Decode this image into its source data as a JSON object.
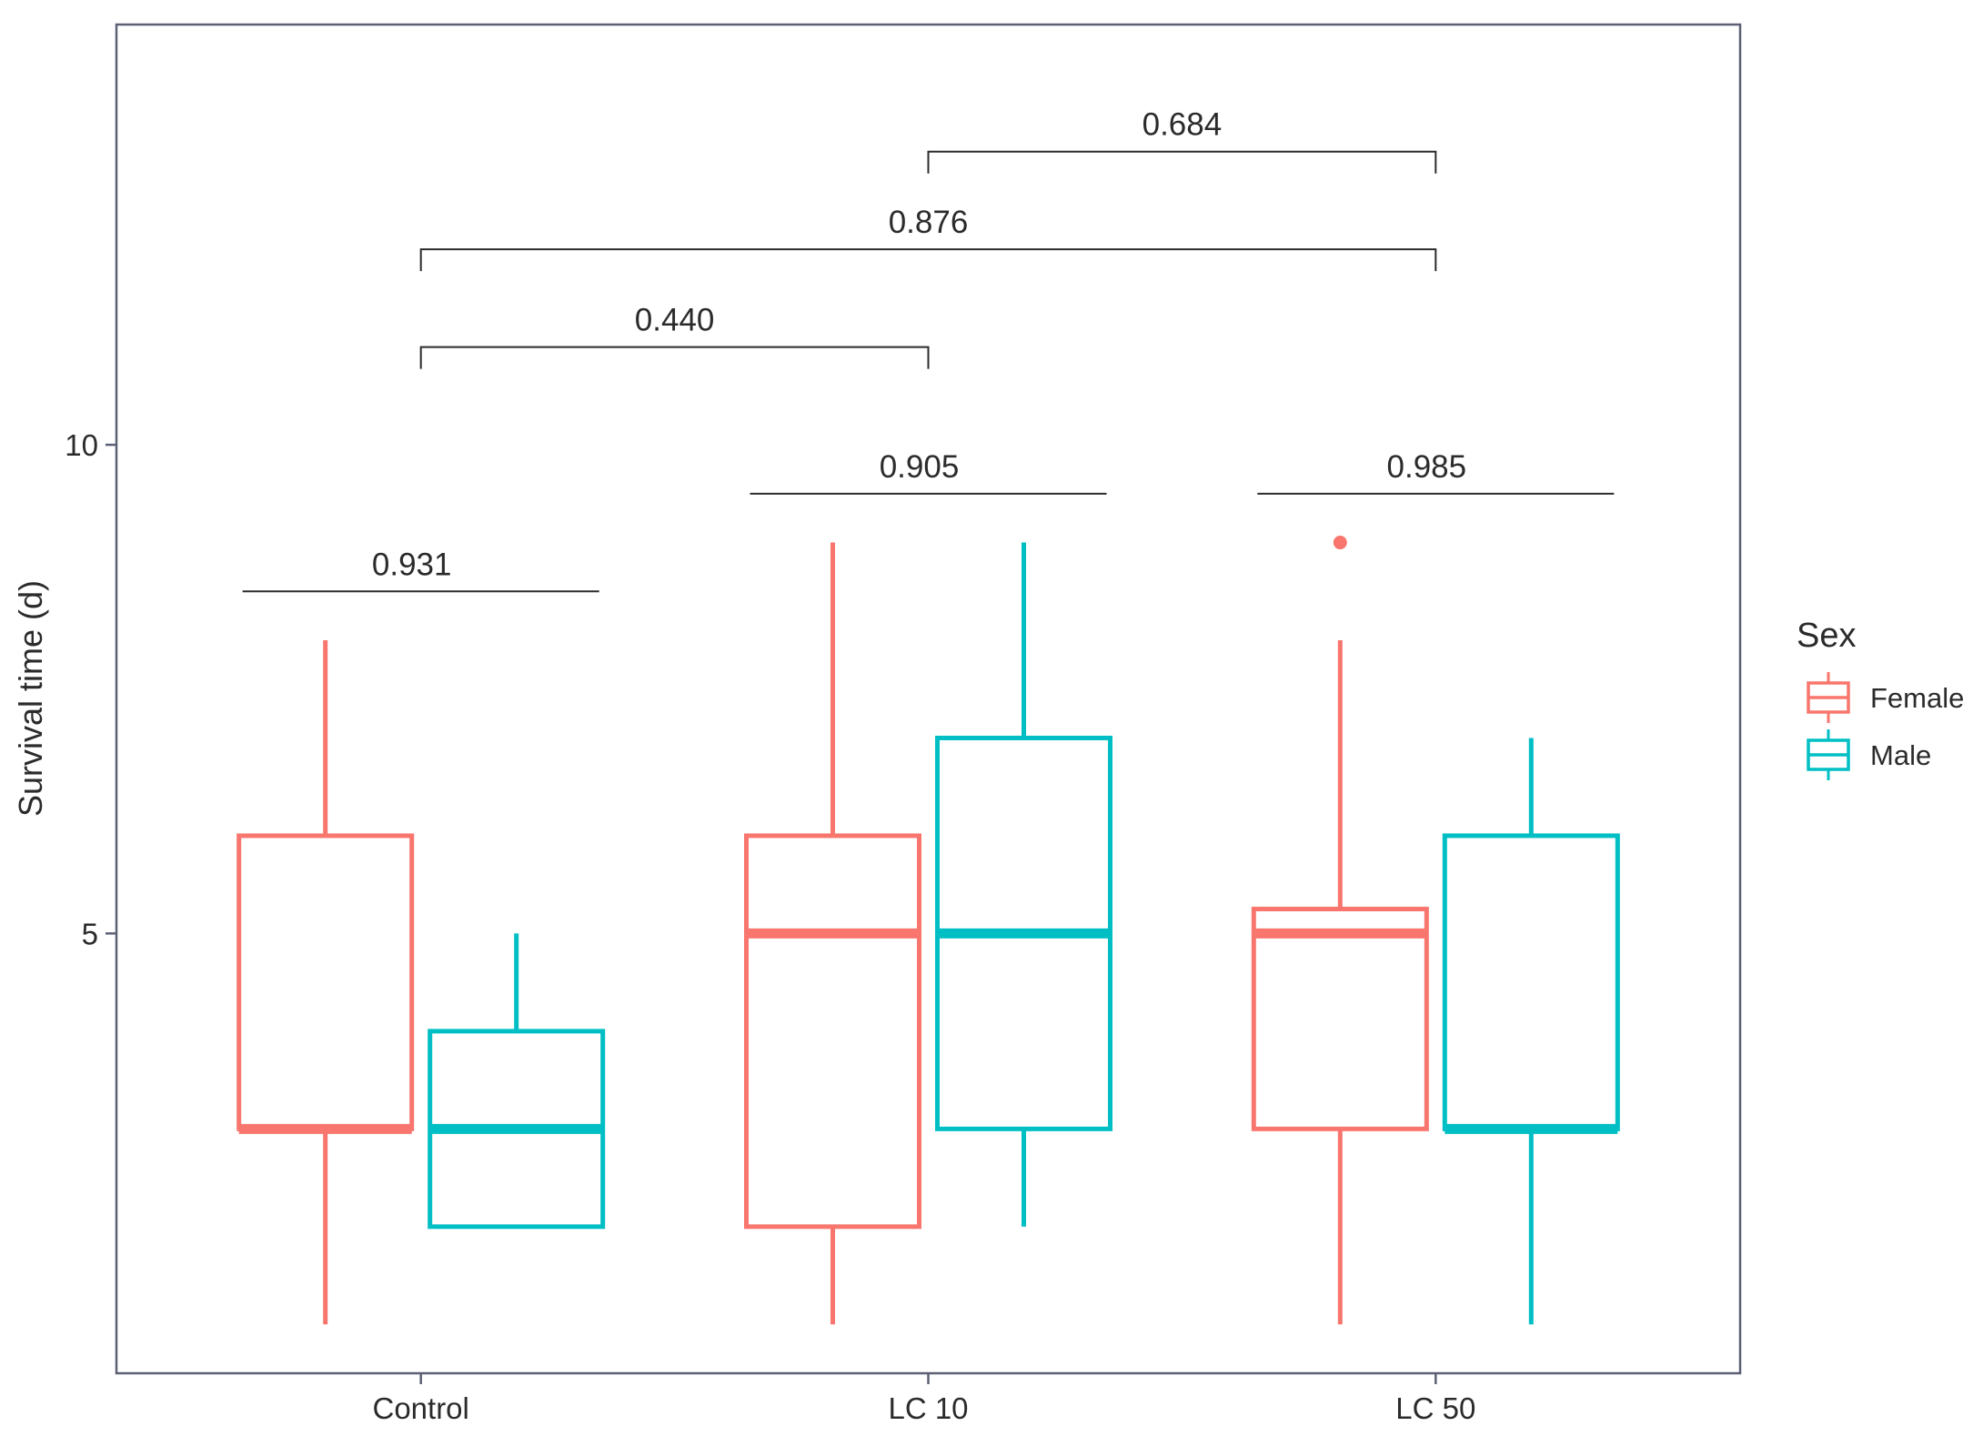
{
  "chart_data": {
    "type": "box",
    "ylabel": "Survival time (d)",
    "xlabel": "",
    "ylim": [
      0.5,
      14.3
    ],
    "yticks": [
      5,
      10
    ],
    "categories": [
      "Control",
      "LC 10",
      "LC 50"
    ],
    "grid": false,
    "legend": {
      "title": "Sex",
      "position": "right",
      "entries": [
        {
          "name": "Female",
          "color": "#F8766D"
        },
        {
          "name": "Male",
          "color": "#00BFC4"
        }
      ]
    },
    "series": [
      {
        "name": "Female",
        "color": "#F8766D",
        "boxes": [
          {
            "category": "Control",
            "min": 1,
            "q1": 3,
            "median": 3,
            "q3": 6,
            "max": 8,
            "outliers": []
          },
          {
            "category": "LC 10",
            "min": 1,
            "q1": 2,
            "median": 5,
            "q3": 6,
            "max": 9,
            "outliers": []
          },
          {
            "category": "LC 50",
            "min": 1,
            "q1": 3,
            "median": 5,
            "q3": 5.25,
            "max": 8,
            "outliers": [
              9
            ]
          }
        ]
      },
      {
        "name": "Male",
        "color": "#00BFC4",
        "boxes": [
          {
            "category": "Control",
            "min": 2,
            "q1": 2,
            "median": 3,
            "q3": 4,
            "max": 5,
            "outliers": []
          },
          {
            "category": "LC 10",
            "min": 2,
            "q1": 3,
            "median": 5,
            "q3": 7,
            "max": 9,
            "outliers": []
          },
          {
            "category": "LC 50",
            "min": 1,
            "q1": 3,
            "median": 3,
            "q3": 6,
            "max": 7,
            "outliers": []
          }
        ]
      }
    ],
    "annotations": [
      {
        "type": "within",
        "category": "Control",
        "label": "0.931",
        "y": 8.5
      },
      {
        "type": "within",
        "category": "LC 10",
        "label": "0.905",
        "y": 9.5
      },
      {
        "type": "within",
        "category": "LC 50",
        "label": "0.985",
        "y": 9.5
      },
      {
        "type": "between",
        "from": "Control",
        "to": "LC 10",
        "label": "0.440",
        "y": 11
      },
      {
        "type": "between",
        "from": "Control",
        "to": "LC 50",
        "label": "0.876",
        "y": 12
      },
      {
        "type": "between",
        "from": "LC 10",
        "to": "LC 50",
        "label": "0.684",
        "y": 13
      }
    ]
  }
}
